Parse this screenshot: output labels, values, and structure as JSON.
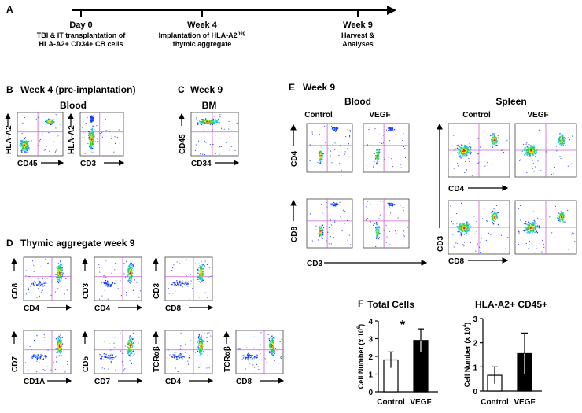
{
  "panel_a": {
    "label": "A",
    "events": [
      {
        "time": "Day 0",
        "lines": [
          "TBI & IT transplantation of",
          "HLA-A2+ CD34+ CB cells"
        ]
      },
      {
        "time": "Week 4",
        "lines": [
          "Implantation of HLA-A2",
          "thymic aggregate"
        ],
        "sup": "neg"
      },
      {
        "time": "Week 9",
        "lines": [
          "Harvest &",
          "Analyses"
        ]
      }
    ]
  },
  "panel_b": {
    "label": "B",
    "title": "Week 4 (pre-implantation)",
    "subtitle": "Blood",
    "plots": [
      {
        "y_label": "HLA-A2",
        "x_label": "CD45"
      },
      {
        "y_label": "HLA-A2",
        "x_label": "CD3"
      }
    ]
  },
  "panel_c": {
    "label": "C",
    "title": "Week 9",
    "subtitle": "BM",
    "plots": [
      {
        "y_label": "CD45",
        "x_label": "CD34"
      }
    ]
  },
  "panel_d": {
    "label": "D",
    "title": "Thymic aggregate week 9",
    "plots": [
      {
        "y_label": "CD8",
        "x_label": "CD4"
      },
      {
        "y_label": "CD3",
        "x_label": "CD4"
      },
      {
        "y_label": "CD3",
        "x_label": "CD8"
      },
      {
        "y_label": "CD7",
        "x_label": "CD1A"
      },
      {
        "y_label": "CD5",
        "x_label": "CD7"
      },
      {
        "y_label": "TCRαβ",
        "x_label": "CD4"
      },
      {
        "y_label": "TCRαβ",
        "x_label": "CD8"
      }
    ]
  },
  "panel_e": {
    "label": "E",
    "title": "Week 9",
    "blood": {
      "title": "Blood",
      "columns": [
        "Control",
        "VEGF"
      ],
      "row_labels": [
        "CD4",
        "CD8"
      ],
      "x_label": "CD3"
    },
    "spleen": {
      "title": "Spleen",
      "columns": [
        "Control",
        "VEGF"
      ],
      "x_labels": [
        "CD4",
        "CD8"
      ],
      "y_label": "CD3"
    }
  },
  "panel_f": {
    "label": "F"
  },
  "chart_data": [
    {
      "type": "bar",
      "title": "Total Cells",
      "y_label": "Cell Number (x 10",
      "y_label_sup": "6",
      "y_label_end": ")",
      "categories": [
        "Control",
        "VEGF"
      ],
      "values": [
        1.8,
        2.9
      ],
      "errors": [
        0.45,
        0.65
      ],
      "colors": [
        "#ffffff",
        "#000000"
      ],
      "annotation": "*",
      "ylim": [
        0,
        4
      ],
      "yticks": [
        0,
        1,
        2,
        3,
        4
      ]
    },
    {
      "type": "bar",
      "title": "HLA-A2+ CD45+",
      "y_label": "Cell Number (x 10",
      "y_label_sup": "4",
      "y_label_end": ")",
      "categories": [
        "Control",
        "VEGF"
      ],
      "values": [
        0.65,
        1.55
      ],
      "errors": [
        0.35,
        0.85
      ],
      "colors": [
        "#ffffff",
        "#000000"
      ],
      "ylim": [
        0,
        3
      ],
      "yticks": [
        0,
        1,
        2,
        3
      ]
    }
  ]
}
